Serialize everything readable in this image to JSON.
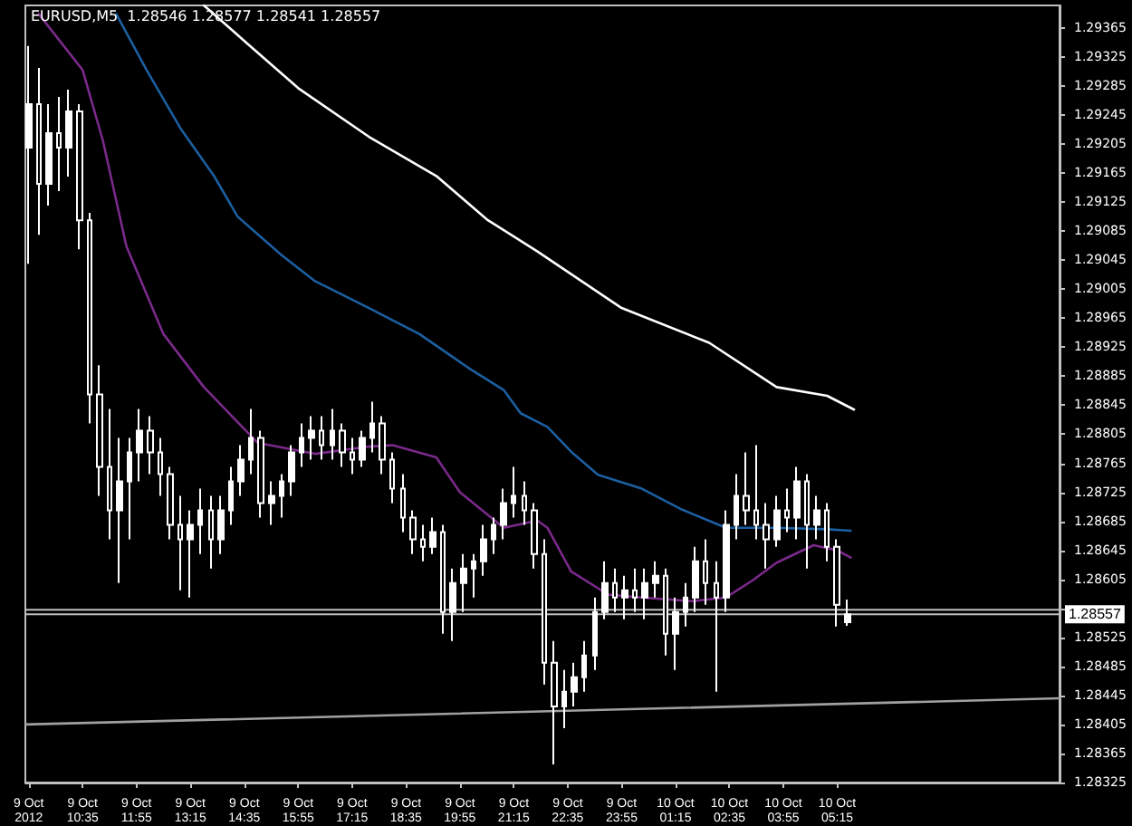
{
  "chart_data": {
    "type": "candlestick",
    "title": "EURUSD,M5  1.28546 1.28577 1.28541 1.28557",
    "xlim": [
      "2012-10-09T09:10",
      "2012-10-10T10:45"
    ],
    "xticks": [
      {
        "value": "2012-10-09T09:15",
        "label": "9 Oct 2012"
      },
      {
        "value": "2012-10-09T10:35",
        "label": "9 Oct 10:35"
      },
      {
        "value": "2012-10-09T11:55",
        "label": "9 Oct 11:55"
      },
      {
        "value": "2012-10-09T13:15",
        "label": "9 Oct 13:15"
      },
      {
        "value": "2012-10-09T14:35",
        "label": "9 Oct 14:35"
      },
      {
        "value": "2012-10-09T15:55",
        "label": "9 Oct 15:55"
      },
      {
        "value": "2012-10-09T17:15",
        "label": "9 Oct 17:15"
      },
      {
        "value": "2012-10-09T18:35",
        "label": "9 Oct 18:35"
      },
      {
        "value": "2012-10-09T19:55",
        "label": "9 Oct 19:55"
      },
      {
        "value": "2012-10-09T21:15",
        "label": "9 Oct 21:15"
      },
      {
        "value": "2012-10-09T22:35",
        "label": "9 Oct 22:35"
      },
      {
        "value": "2012-10-09T23:55",
        "label": "9 Oct 23:55"
      },
      {
        "value": "2012-10-10T01:15",
        "label": "10 Oct 01:15"
      },
      {
        "value": "2012-10-10T02:35",
        "label": "10 Oct 02:35"
      },
      {
        "value": "2012-10-10T03:55",
        "label": "10 Oct 03:55"
      },
      {
        "value": "2012-10-10T05:15",
        "label": "10 Oct 05:15"
      }
    ],
    "ylim": [
      1.28325,
      1.29396
    ],
    "yticks": [
      1.28325,
      1.28365,
      1.28405,
      1.28445,
      1.28485,
      1.28525,
      {
        "value": 1.28565,
        "label": null
      },
      1.28605,
      1.28645,
      1.28685,
      1.28725,
      1.28765,
      1.28805,
      1.28845,
      1.28885,
      1.28925,
      1.28965,
      1.29005,
      1.29045,
      1.29085,
      1.29125,
      1.29165,
      1.29205,
      1.29245,
      1.29285,
      1.29325,
      1.29365
    ],
    "grid": false,
    "ref_lines": [
      {
        "axis": "y",
        "value": 1.28557,
        "label": "1.28557",
        "color": "#c0c0c0"
      },
      {
        "axis": "y",
        "value": 1.28563,
        "label": null,
        "color": "#c0c0c0"
      }
    ],
    "series": [
      {
        "type": "line",
        "color": "#ffffff",
        "x": [
          "2012-10-09T13:35",
          "2012-10-09T14:40",
          "2012-10-09T15:55",
          "2012-10-09T17:40",
          "2012-10-09T19:20",
          "2012-10-09T20:35",
          "2012-10-09T21:50",
          "2012-10-09T23:55",
          "2012-10-10T02:05",
          "2012-10-10T03:45",
          "2012-10-10T05:00",
          "2012-10-10T05:40"
        ],
        "values": [
          1.29396,
          1.29343,
          1.29282,
          1.29215,
          1.29161,
          1.29101,
          1.29057,
          1.28979,
          1.28931,
          1.2887,
          1.28858,
          1.28839
        ]
      },
      {
        "type": "line",
        "color": "#1c5fa0",
        "x": [
          "2012-10-09T11:25",
          "2012-10-09T12:10",
          "2012-10-09T13:00",
          "2012-10-09T13:50",
          "2012-10-09T14:25",
          "2012-10-09T15:30",
          "2012-10-09T16:20",
          "2012-10-09T17:40",
          "2012-10-09T18:55",
          "2012-10-09T20:10",
          "2012-10-09T21:00",
          "2012-10-09T21:25",
          "2012-10-09T22:05",
          "2012-10-09T22:40",
          "2012-10-09T23:20",
          "2012-10-10T00:25",
          "2012-10-10T01:25",
          "2012-10-10T02:30",
          "2012-10-10T03:45",
          "2012-10-10T05:00",
          "2012-10-10T05:35"
        ],
        "values": [
          1.29384,
          1.29307,
          1.29227,
          1.29161,
          1.29105,
          1.29052,
          1.29016,
          1.28979,
          1.28943,
          1.28895,
          1.28866,
          1.28834,
          1.28815,
          1.28781,
          1.28749,
          1.2873,
          1.28701,
          1.28676,
          1.28676,
          1.28674,
          1.28672
        ]
      },
      {
        "type": "line",
        "color": "#7a2a8a",
        "x": [
          "2012-10-09T09:30",
          "2012-10-09T10:35",
          "2012-10-09T11:05",
          "2012-10-09T11:40",
          "2012-10-09T12:35",
          "2012-10-09T13:35",
          "2012-10-09T14:55",
          "2012-10-09T16:20",
          "2012-10-09T17:40",
          "2012-10-09T18:15",
          "2012-10-09T19:20",
          "2012-10-09T19:55",
          "2012-10-09T21:00",
          "2012-10-09T21:50",
          "2012-10-09T22:05",
          "2012-10-09T22:40",
          "2012-10-09T23:35",
          "2012-10-10T00:25",
          "2012-10-10T01:40",
          "2012-10-10T02:30",
          "2012-10-10T03:10",
          "2012-10-10T03:45",
          "2012-10-10T04:40",
          "2012-10-10T05:15",
          "2012-10-10T05:35"
        ],
        "values": [
          1.29384,
          1.29307,
          1.2921,
          1.29064,
          1.28943,
          1.2887,
          1.28793,
          1.28778,
          1.28788,
          1.2879,
          1.28773,
          1.28725,
          1.28676,
          1.28686,
          1.28676,
          1.28616,
          1.28584,
          1.2858,
          1.28575,
          1.2858,
          1.28604,
          1.28628,
          1.28652,
          1.28645,
          1.28635
        ]
      },
      {
        "type": "line",
        "color": "#a0a0a0",
        "x": [
          "2012-10-09T09:10",
          "2012-10-10T10:45"
        ],
        "values": [
          1.28405,
          1.28441
        ]
      },
      {
        "color": "#ffffff",
        "x": [
          "2012-10-09T09:15",
          "2012-10-09T09:30",
          "2012-10-09T09:45",
          "2012-10-09T10:00",
          "2012-10-09T10:15",
          "2012-10-09T10:30",
          "2012-10-09T10:45",
          "2012-10-09T11:00",
          "2012-10-09T11:15",
          "2012-10-09T11:30",
          "2012-10-09T11:45",
          "2012-10-09T12:00",
          "2012-10-09T12:15",
          "2012-10-09T12:30",
          "2012-10-09T12:45",
          "2012-10-09T13:00",
          "2012-10-09T13:15",
          "2012-10-09T13:30",
          "2012-10-09T13:45",
          "2012-10-09T14:00",
          "2012-10-09T14:15",
          "2012-10-09T14:30",
          "2012-10-09T14:45",
          "2012-10-09T15:00",
          "2012-10-09T15:15",
          "2012-10-09T15:30",
          "2012-10-09T15:45",
          "2012-10-09T16:00",
          "2012-10-09T16:15",
          "2012-10-09T16:30",
          "2012-10-09T16:45",
          "2012-10-09T17:00",
          "2012-10-09T17:15",
          "2012-10-09T17:30",
          "2012-10-09T17:45",
          "2012-10-09T18:00",
          "2012-10-09T18:15",
          "2012-10-09T18:30",
          "2012-10-09T18:45",
          "2012-10-09T19:00",
          "2012-10-09T19:15",
          "2012-10-09T19:30",
          "2012-10-09T19:45",
          "2012-10-09T20:00",
          "2012-10-09T20:15",
          "2012-10-09T20:30",
          "2012-10-09T20:45",
          "2012-10-09T21:00",
          "2012-10-09T21:15",
          "2012-10-09T21:30",
          "2012-10-09T21:45",
          "2012-10-09T22:00",
          "2012-10-09T22:15",
          "2012-10-09T22:30",
          "2012-10-09T22:45",
          "2012-10-09T23:00",
          "2012-10-09T23:15",
          "2012-10-09T23:30",
          "2012-10-09T23:45",
          "2012-10-10T00:00",
          "2012-10-10T00:15",
          "2012-10-10T00:30",
          "2012-10-10T00:45",
          "2012-10-10T01:00",
          "2012-10-10T01:15",
          "2012-10-10T01:30",
          "2012-10-10T01:45",
          "2012-10-10T02:00",
          "2012-10-10T02:15",
          "2012-10-10T02:30",
          "2012-10-10T02:45",
          "2012-10-10T03:00",
          "2012-10-10T03:15",
          "2012-10-10T03:30",
          "2012-10-10T03:45",
          "2012-10-10T04:00",
          "2012-10-10T04:15",
          "2012-10-10T04:30",
          "2012-10-10T04:45",
          "2012-10-10T05:00",
          "2012-10-10T05:15",
          "2012-10-10T05:30"
        ],
        "ohlc": [
          [
            1.292,
            1.2934,
            1.2904,
            1.2926
          ],
          [
            1.2926,
            1.2931,
            1.2908,
            1.2915
          ],
          [
            1.2915,
            1.2926,
            1.2912,
            1.2922
          ],
          [
            1.2922,
            1.2927,
            1.2914,
            1.292
          ],
          [
            1.292,
            1.2928,
            1.2916,
            1.2925
          ],
          [
            1.2925,
            1.2926,
            1.2906,
            1.291
          ],
          [
            1.291,
            1.2911,
            1.2882,
            1.2886
          ],
          [
            1.2886,
            1.289,
            1.2872,
            1.2876
          ],
          [
            1.2876,
            1.2884,
            1.2866,
            1.287
          ],
          [
            1.287,
            1.288,
            1.286,
            1.2874
          ],
          [
            1.2874,
            1.288,
            1.2866,
            1.2878
          ],
          [
            1.2878,
            1.2884,
            1.2874,
            1.2881
          ],
          [
            1.2881,
            1.2883,
            1.2875,
            1.2878
          ],
          [
            1.2878,
            1.288,
            1.2872,
            1.2875
          ],
          [
            1.2875,
            1.2876,
            1.2866,
            1.2868
          ],
          [
            1.2868,
            1.2872,
            1.2859,
            1.2866
          ],
          [
            1.2866,
            1.287,
            1.2858,
            1.2868
          ],
          [
            1.2868,
            1.2873,
            1.2864,
            1.287
          ],
          [
            1.287,
            1.2872,
            1.2862,
            1.2866
          ],
          [
            1.2866,
            1.2872,
            1.2864,
            1.287
          ],
          [
            1.287,
            1.2876,
            1.2868,
            1.2874
          ],
          [
            1.2874,
            1.2879,
            1.2872,
            1.2877
          ],
          [
            1.2877,
            1.2884,
            1.2875,
            1.288
          ],
          [
            1.288,
            1.2881,
            1.2869,
            1.2871
          ],
          [
            1.2871,
            1.2874,
            1.2868,
            1.2872
          ],
          [
            1.2872,
            1.2875,
            1.2869,
            1.2874
          ],
          [
            1.2874,
            1.2879,
            1.2872,
            1.2878
          ],
          [
            1.2878,
            1.2882,
            1.2876,
            1.288
          ],
          [
            1.288,
            1.2883,
            1.2877,
            1.2881
          ],
          [
            1.2881,
            1.2883,
            1.2877,
            1.2879
          ],
          [
            1.2879,
            1.2884,
            1.2877,
            1.2881
          ],
          [
            1.2881,
            1.2882,
            1.2876,
            1.2878
          ],
          [
            1.2878,
            1.288,
            1.2875,
            1.2877
          ],
          [
            1.2877,
            1.2881,
            1.2876,
            1.288
          ],
          [
            1.288,
            1.2885,
            1.2878,
            1.2882
          ],
          [
            1.2882,
            1.2883,
            1.2875,
            1.2877
          ],
          [
            1.2877,
            1.2878,
            1.2871,
            1.2873
          ],
          [
            1.2873,
            1.2875,
            1.2867,
            1.2869
          ],
          [
            1.2869,
            1.287,
            1.2864,
            1.2866
          ],
          [
            1.2866,
            1.2868,
            1.2863,
            1.2865
          ],
          [
            1.2865,
            1.2869,
            1.2864,
            1.2867
          ],
          [
            1.2867,
            1.2868,
            1.2853,
            1.2856
          ],
          [
            1.2856,
            1.2862,
            1.2852,
            1.286
          ],
          [
            1.286,
            1.2864,
            1.2856,
            1.2862
          ],
          [
            1.2862,
            1.2864,
            1.2858,
            1.2863
          ],
          [
            1.2863,
            1.2868,
            1.2861,
            1.2866
          ],
          [
            1.2866,
            1.2869,
            1.2864,
            1.2868
          ],
          [
            1.2868,
            1.2873,
            1.2866,
            1.2871
          ],
          [
            1.2871,
            1.2876,
            1.2869,
            1.2872
          ],
          [
            1.2872,
            1.2874,
            1.2868,
            1.287
          ],
          [
            1.287,
            1.2871,
            1.2862,
            1.2864
          ],
          [
            1.2864,
            1.2866,
            1.2846,
            1.2849
          ],
          [
            1.2849,
            1.2852,
            1.2835,
            1.2843
          ],
          [
            1.2843,
            1.2848,
            1.284,
            1.2845
          ],
          [
            1.2845,
            1.2849,
            1.2843,
            1.2847
          ],
          [
            1.2847,
            1.2852,
            1.2845,
            1.285
          ],
          [
            1.285,
            1.2858,
            1.2848,
            1.2856
          ],
          [
            1.2856,
            1.2863,
            1.2855,
            1.286
          ],
          [
            1.286,
            1.2862,
            1.2856,
            1.2858
          ],
          [
            1.2858,
            1.2861,
            1.2855,
            1.2859
          ],
          [
            1.2859,
            1.2862,
            1.2856,
            1.2858
          ],
          [
            1.2858,
            1.2862,
            1.2855,
            1.286
          ],
          [
            1.286,
            1.2863,
            1.2858,
            1.2861
          ],
          [
            1.2861,
            1.2862,
            1.285,
            1.2853
          ],
          [
            1.2853,
            1.2858,
            1.2848,
            1.2856
          ],
          [
            1.2856,
            1.286,
            1.2854,
            1.2858
          ],
          [
            1.2858,
            1.2865,
            1.2856,
            1.2863
          ],
          [
            1.2863,
            1.2866,
            1.2857,
            1.286
          ],
          [
            1.286,
            1.2863,
            1.2845,
            1.2858
          ],
          [
            1.2858,
            1.287,
            1.2856,
            1.2868
          ],
          [
            1.2868,
            1.2875,
            1.2866,
            1.2872
          ],
          [
            1.2872,
            1.2878,
            1.2868,
            1.287
          ],
          [
            1.287,
            1.2879,
            1.2866,
            1.2868
          ],
          [
            1.2868,
            1.2871,
            1.2862,
            1.2866
          ],
          [
            1.2866,
            1.2872,
            1.2865,
            1.287
          ],
          [
            1.287,
            1.2873,
            1.2867,
            1.2869
          ],
          [
            1.2869,
            1.2876,
            1.2866,
            1.2874
          ],
          [
            1.2874,
            1.2875,
            1.2862,
            1.2868
          ],
          [
            1.2868,
            1.2872,
            1.2866,
            1.287
          ],
          [
            1.287,
            1.2871,
            1.2863,
            1.2865
          ],
          [
            1.2865,
            1.2866,
            1.2854,
            1.2857
          ],
          [
            1.28546,
            1.28577,
            1.28541,
            1.28557
          ]
        ]
      }
    ]
  }
}
